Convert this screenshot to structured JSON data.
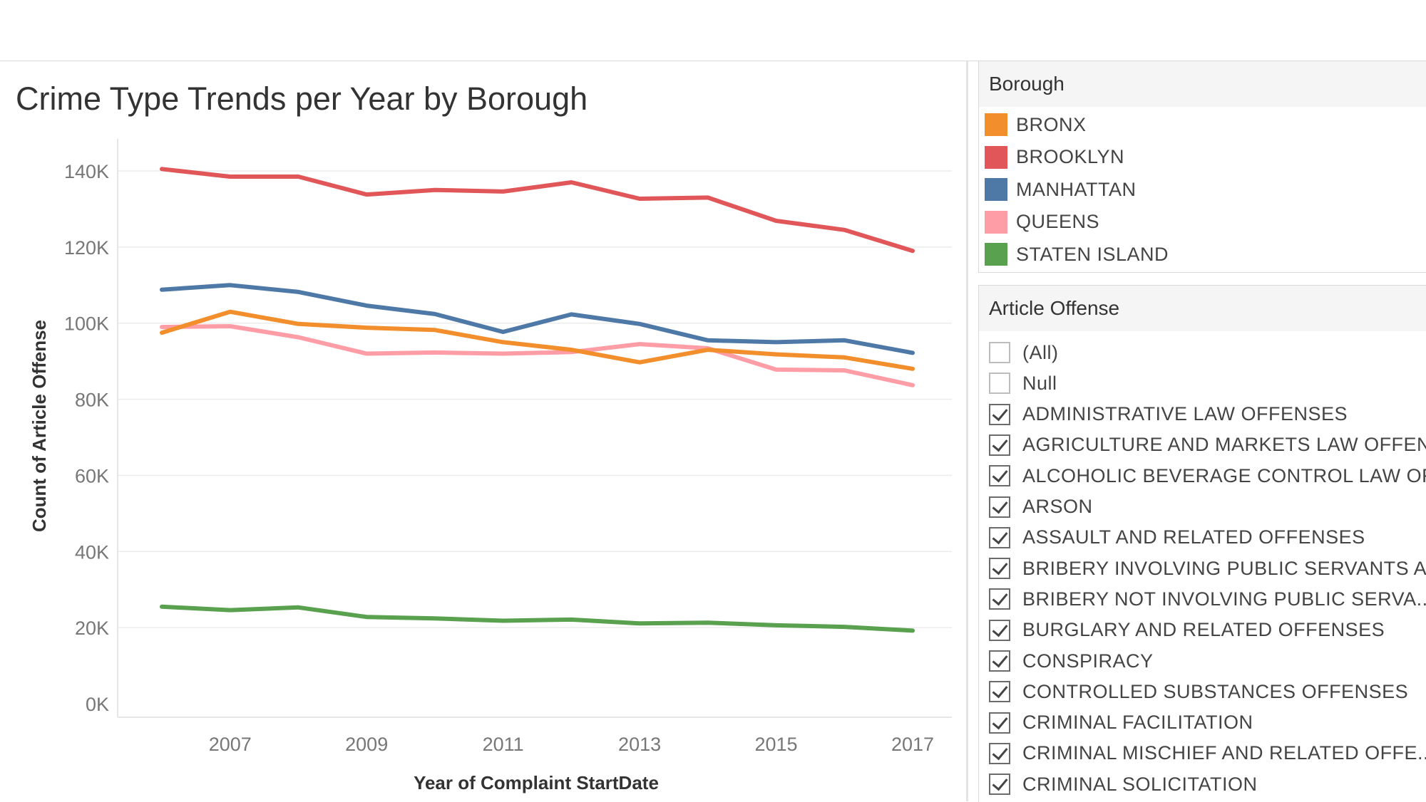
{
  "chart_data": {
    "type": "line",
    "title": "Crime Type Trends per Year by Borough",
    "xlabel": "Year of Complaint StartDate",
    "ylabel": "Count of Article Offense",
    "x": [
      2006,
      2007,
      2008,
      2009,
      2010,
      2011,
      2012,
      2013,
      2014,
      2015,
      2016,
      2017
    ],
    "x_ticks": [
      "2007",
      "2009",
      "2011",
      "2013",
      "2015",
      "2017"
    ],
    "y_ticks": [
      "0K",
      "20K",
      "40K",
      "60K",
      "80K",
      "100K",
      "120K",
      "140K"
    ],
    "ylim": [
      0,
      150000
    ],
    "grid": true,
    "series": [
      {
        "name": "BRONX",
        "color": "#f28e2b",
        "values": [
          97500,
          103000,
          99800,
          98800,
          98200,
          95000,
          93000,
          89700,
          93000,
          91800,
          91000,
          88000
        ]
      },
      {
        "name": "BROOKLYN",
        "color": "#e15759",
        "values": [
          140500,
          138500,
          138500,
          133800,
          135000,
          134600,
          137000,
          132700,
          133000,
          126900,
          124500,
          119000
        ]
      },
      {
        "name": "MANHATTAN",
        "color": "#4e79a7",
        "values": [
          108800,
          110000,
          108200,
          104600,
          102400,
          97700,
          102300,
          99800,
          95500,
          95000,
          95500,
          92200
        ]
      },
      {
        "name": "QUEENS",
        "color": "#ff9da7",
        "values": [
          99000,
          99200,
          96300,
          92000,
          92300,
          92000,
          92400,
          94500,
          93400,
          87800,
          87600,
          83700
        ]
      },
      {
        "name": "STATEN ISLAND",
        "color": "#59a14f",
        "values": [
          25500,
          24600,
          25300,
          22800,
          22400,
          21800,
          22100,
          21100,
          21300,
          20600,
          20200,
          19200
        ]
      }
    ]
  },
  "legend": {
    "title": "Borough",
    "items": [
      {
        "label": "BRONX",
        "color": "#f28e2b"
      },
      {
        "label": "BROOKLYN",
        "color": "#e15759"
      },
      {
        "label": "MANHATTAN",
        "color": "#4e79a7"
      },
      {
        "label": "QUEENS",
        "color": "#ff9da7"
      },
      {
        "label": "STATEN ISLAND",
        "color": "#59a14f"
      }
    ]
  },
  "filter": {
    "title": "Article Offense",
    "items": [
      {
        "label": "(All)",
        "checked": false
      },
      {
        "label": "Null",
        "checked": false
      },
      {
        "label": "ADMINISTRATIVE LAW OFFENSES",
        "checked": true
      },
      {
        "label": "AGRICULTURE AND MARKETS LAW OFFEN...",
        "checked": true
      },
      {
        "label": "ALCOHOLIC BEVERAGE CONTROL LAW OF...",
        "checked": true
      },
      {
        "label": "ARSON",
        "checked": true
      },
      {
        "label": "ASSAULT AND RELATED OFFENSES",
        "checked": true
      },
      {
        "label": "BRIBERY INVOLVING PUBLIC SERVANTS A...",
        "checked": true
      },
      {
        "label": "BRIBERY NOT INVOLVING PUBLIC SERVA...",
        "checked": true
      },
      {
        "label": "BURGLARY AND RELATED OFFENSES",
        "checked": true
      },
      {
        "label": "CONSPIRACY",
        "checked": true
      },
      {
        "label": "CONTROLLED SUBSTANCES OFFENSES",
        "checked": true
      },
      {
        "label": "CRIMINAL FACILITATION",
        "checked": true
      },
      {
        "label": "CRIMINAL MISCHIEF AND RELATED OFFE...",
        "checked": true
      },
      {
        "label": "CRIMINAL SOLICITATION",
        "checked": true
      }
    ]
  }
}
